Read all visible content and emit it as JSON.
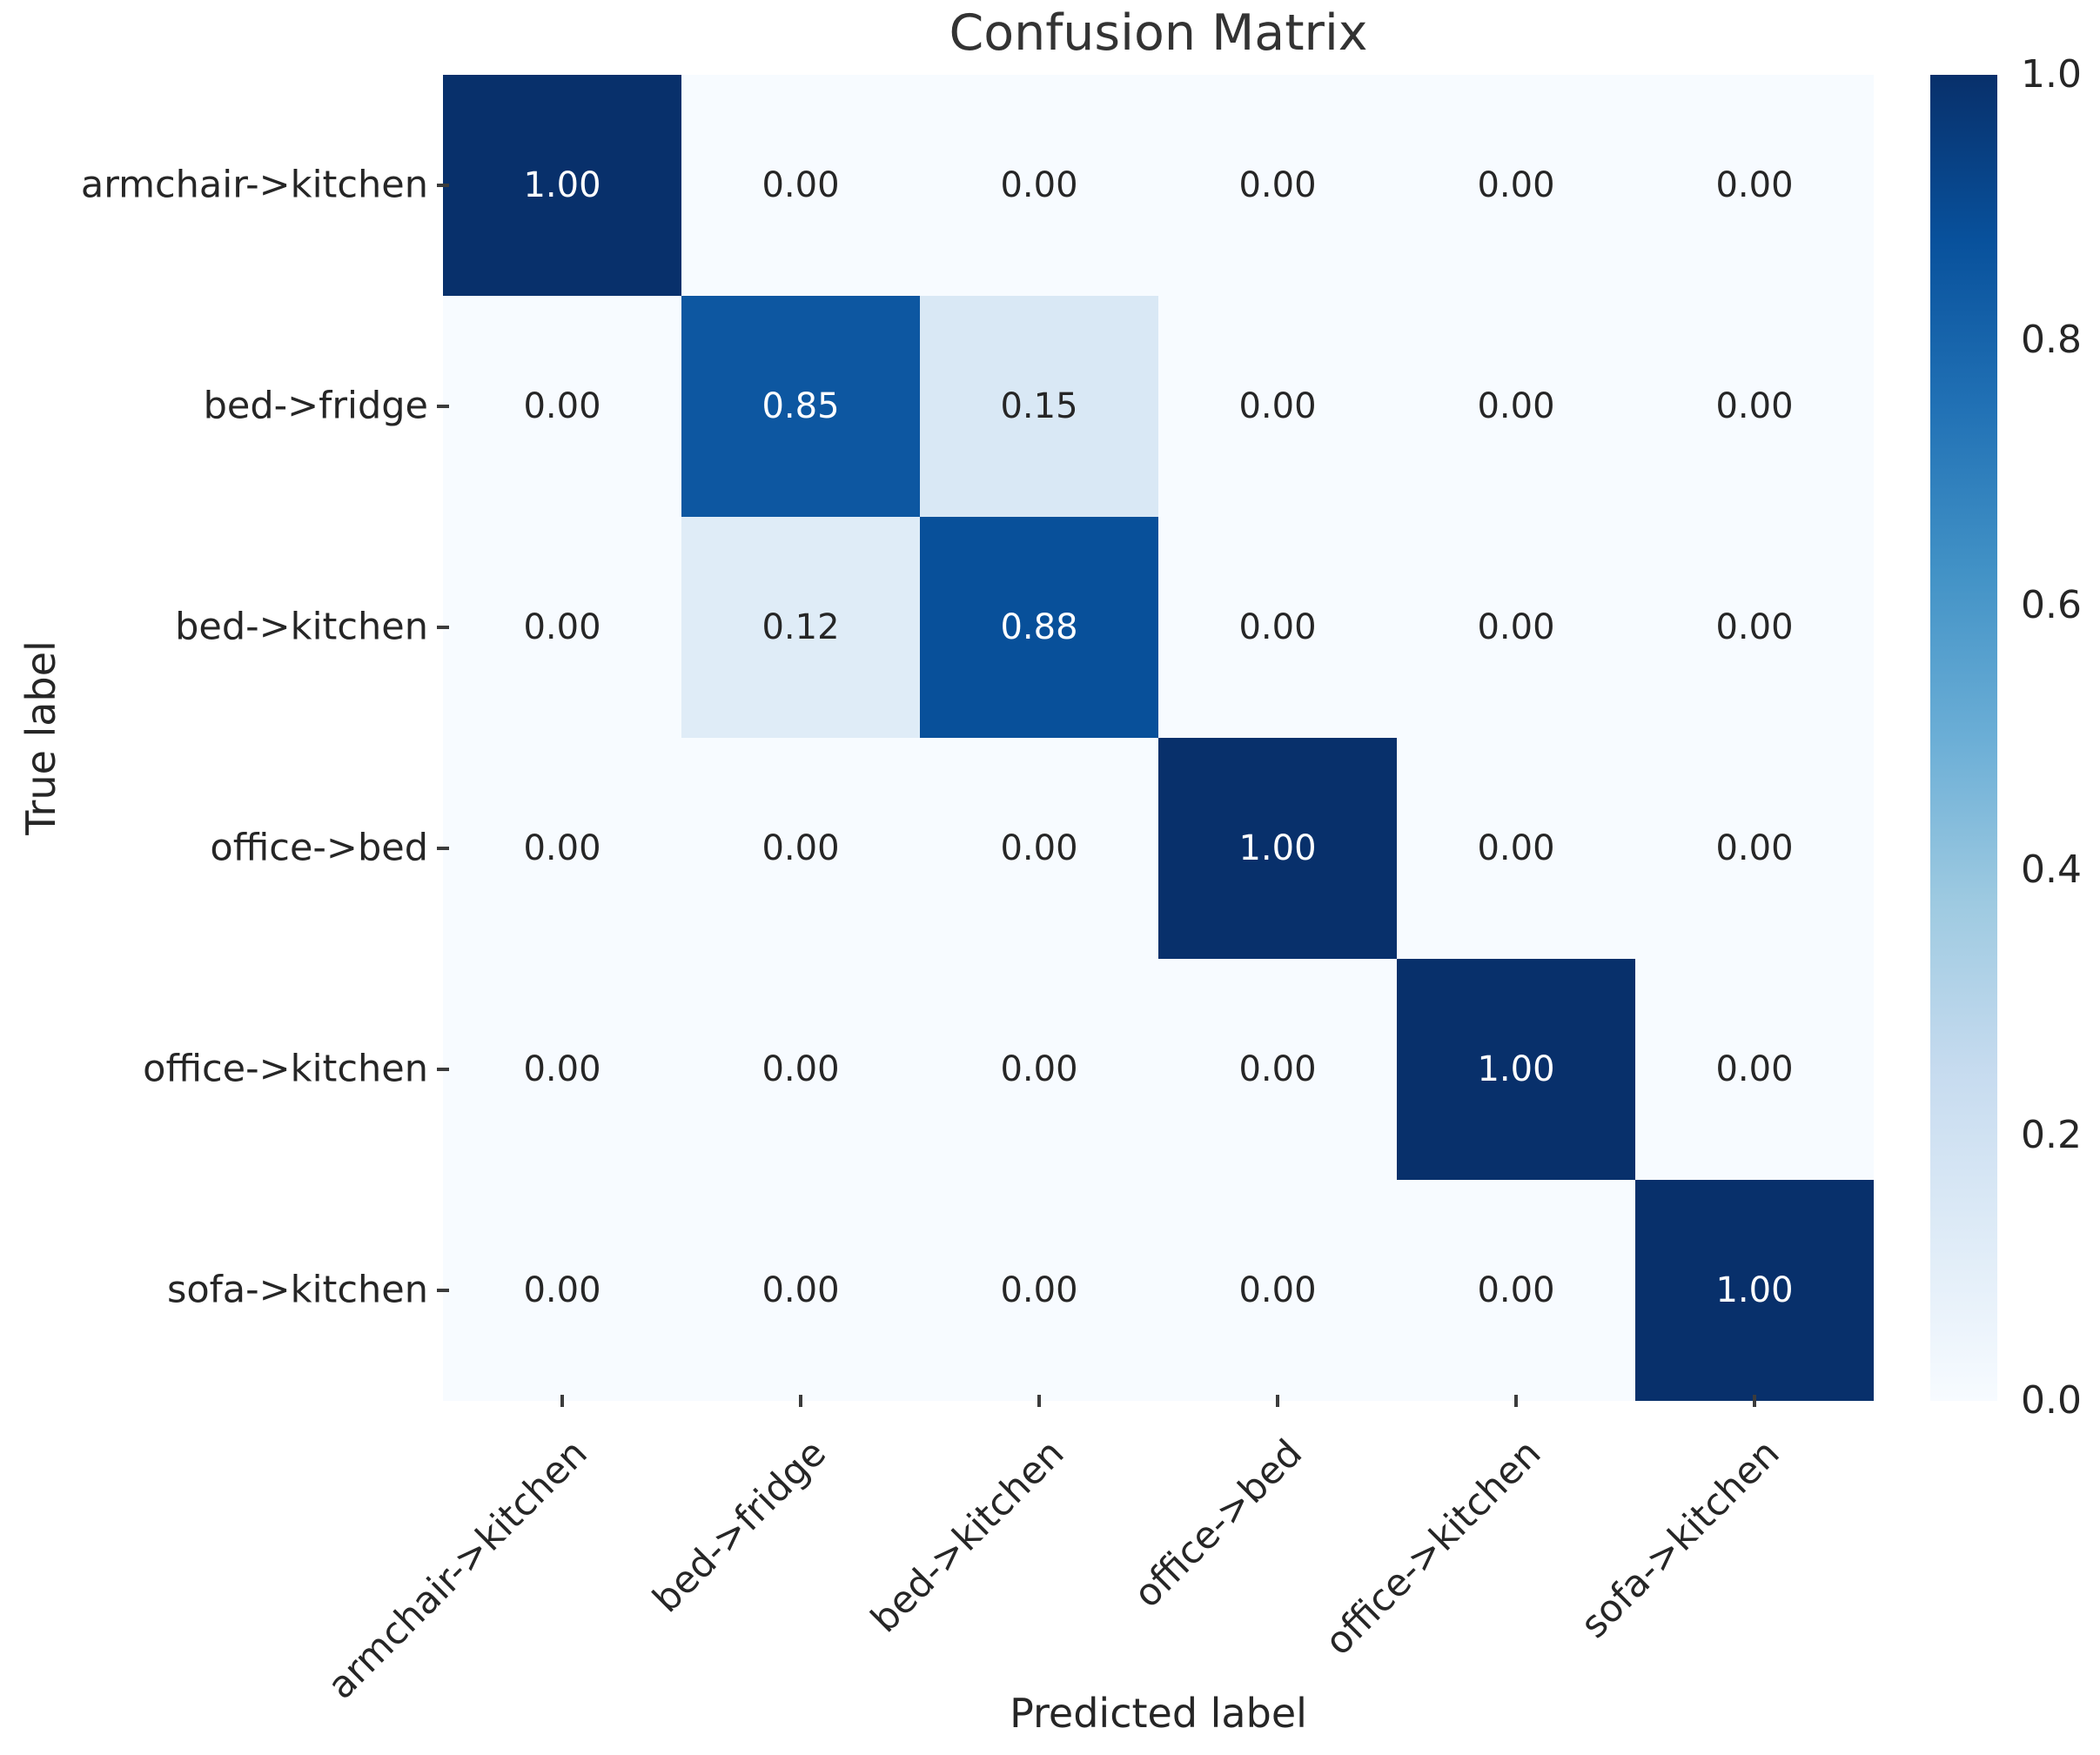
{
  "chart_data": {
    "type": "heatmap",
    "title": "Confusion Matrix",
    "xlabel": "Predicted label",
    "ylabel": "True label",
    "x_categories": [
      "armchair->kitchen",
      "bed->fridge",
      "bed->kitchen",
      "office->bed",
      "office->kitchen",
      "sofa->kitchen"
    ],
    "y_categories": [
      "armchair->kitchen",
      "bed->fridge",
      "bed->kitchen",
      "office->bed",
      "office->kitchen",
      "sofa->kitchen"
    ],
    "matrix": [
      [
        1.0,
        0.0,
        0.0,
        0.0,
        0.0,
        0.0
      ],
      [
        0.0,
        0.85,
        0.15,
        0.0,
        0.0,
        0.0
      ],
      [
        0.0,
        0.12,
        0.88,
        0.0,
        0.0,
        0.0
      ],
      [
        0.0,
        0.0,
        0.0,
        1.0,
        0.0,
        0.0
      ],
      [
        0.0,
        0.0,
        0.0,
        0.0,
        1.0,
        0.0
      ],
      [
        0.0,
        0.0,
        0.0,
        0.0,
        0.0,
        1.0
      ]
    ],
    "value_decimals": 2,
    "vmin": 0.0,
    "vmax": 1.0,
    "colormap": "Blues",
    "colorbar_ticks": [
      1.0,
      0.8,
      0.6,
      0.4,
      0.2,
      0.0
    ],
    "colorbar_tick_decimals": 1,
    "legend_position": "right-colorbar",
    "grid": false
  },
  "colors": {
    "background": "#ffffff",
    "axis_text": "#262626",
    "title_text": "#333333",
    "annot_dark": "#262626",
    "annot_light": "#ffffff",
    "tick_mark": "#3c3c3c",
    "blues_anchors": [
      "#f7fbff",
      "#deebf7",
      "#c6dbef",
      "#9ecae1",
      "#6baed6",
      "#4292c6",
      "#2171b5",
      "#08519c",
      "#08306b"
    ]
  }
}
